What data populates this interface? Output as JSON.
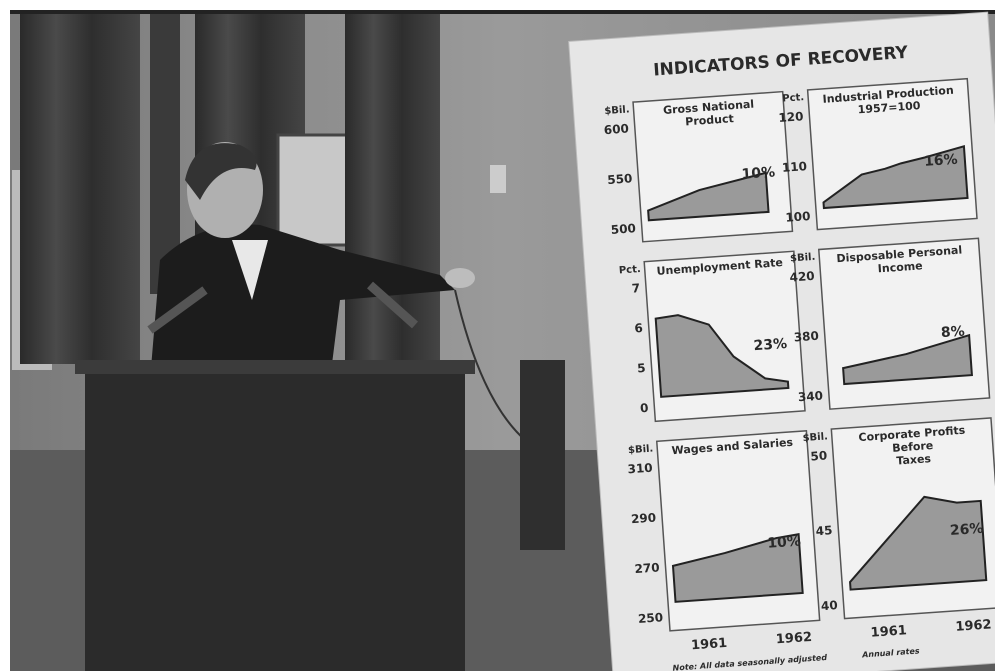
{
  "board": {
    "title": "INDICATORS OF RECOVERY",
    "panels": [
      {
        "unit": "$Bil.",
        "title_lines": [
          "Gross National",
          "Product"
        ],
        "ticks": [
          "600",
          "550",
          "500"
        ],
        "change": "10%"
      },
      {
        "unit": "Pct.",
        "title_lines": [
          "Industrial Production",
          "1957=100"
        ],
        "ticks": [
          "120",
          "110",
          "100"
        ],
        "change": "16%"
      },
      {
        "unit": "Pct.",
        "title_lines": [
          "Unemployment Rate"
        ],
        "ticks": [
          "7",
          "6",
          "5",
          "0"
        ],
        "change": "23%"
      },
      {
        "unit": "$Bil.",
        "title_lines": [
          "Disposable Personal",
          "Income"
        ],
        "ticks": [
          "420",
          "380",
          "340"
        ],
        "change": "8%"
      },
      {
        "unit": "$Bil.",
        "title_lines": [
          "Wages and Salaries"
        ],
        "ticks": [
          "310",
          "290",
          "270",
          "250"
        ],
        "change": "10%"
      },
      {
        "unit": "$Bil.",
        "title_lines": [
          "Corporate Profits",
          "Before",
          "Taxes"
        ],
        "ticks": [
          "50",
          "45",
          "40"
        ],
        "change": "26%"
      }
    ],
    "x_labels": [
      [
        "1961",
        "1962"
      ],
      [
        "1961",
        "1962"
      ]
    ],
    "footnotes": [
      "Note: All data seasonally adjusted",
      "Annual rates"
    ]
  }
}
